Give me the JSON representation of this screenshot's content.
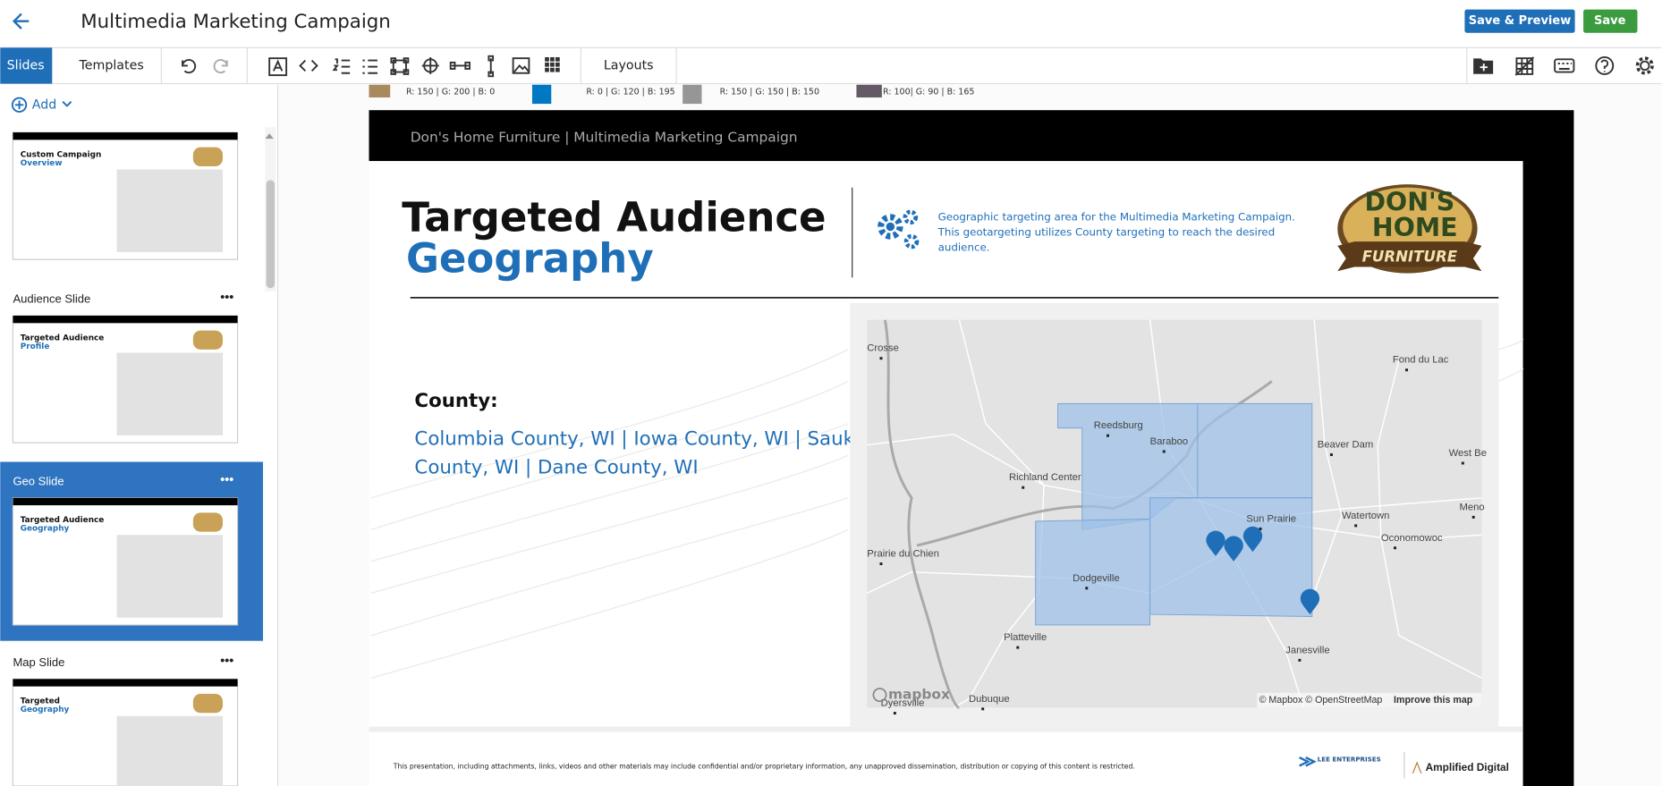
{
  "header": {
    "title": "Multimedia Marketing Campaign",
    "buttons": [
      "Save & Preview",
      "Save"
    ]
  },
  "toolbar": {
    "tabs": [
      "Slides",
      "Templates"
    ],
    "layouts": "Layouts"
  },
  "sidebar": {
    "add": "Add",
    "slides": [
      {
        "label": null,
        "thumb": [
          "Custom Campaign",
          "Overview"
        ]
      },
      {
        "label": "Audience Slide",
        "thumb": [
          "Targeted Audience",
          "Profile"
        ]
      },
      {
        "label": "Geo Slide",
        "thumb": [
          "Targeted Audience",
          "Geography"
        ]
      },
      {
        "label": "Map Slide",
        "thumb": [
          "Targeted",
          "Geography"
        ]
      }
    ]
  },
  "swatches": [
    "R: 150 | G: 200 | B: 0",
    "R: 0 | G: 120 | B: 195",
    "R: 150 | G: 150 | B: 150",
    "R: 100| G: 90 | B: 165"
  ],
  "slide": {
    "banner": "Don's Home Furniture | Multimedia Marketing Campaign",
    "title": "Targeted Audience",
    "subtitle": "Geography",
    "description": [
      "Geographic targeting area for the Multimedia Marketing Campaign.",
      "This geotargeting utilizes County targeting to reach the desired",
      "audience."
    ],
    "logo": [
      "DON'S",
      "HOME",
      "FURNITURE"
    ],
    "county_label": "County:",
    "counties": [
      "Columbia County, WI | Iowa County, WI | Sauk",
      "County, WI | Dane County, WI"
    ],
    "map": {
      "places": [
        "Crosse",
        "Fond du Lac",
        "Reedsburg",
        "Baraboo",
        "Beaver Dam",
        "West Be",
        "Richland Center",
        "Sun Prairie",
        "Watertown",
        "Meno",
        "Oconomowoc",
        "Prairie du Chien",
        "Dodgeville",
        "Platteville",
        "Janesville",
        "Dubuque",
        "Dyersville"
      ],
      "brand": "mapbox",
      "attribution": "© Mapbox © OpenStreetMap",
      "improve": "Improve this map"
    },
    "footer": "This presentation, including attachments, links, videos and other materials may include confidential and/or proprietary information, any unapproved dissemination, distribution or copying of this content is restricted.",
    "partners": [
      "LEE ENTERPRISES",
      "Amplified Digital"
    ]
  }
}
